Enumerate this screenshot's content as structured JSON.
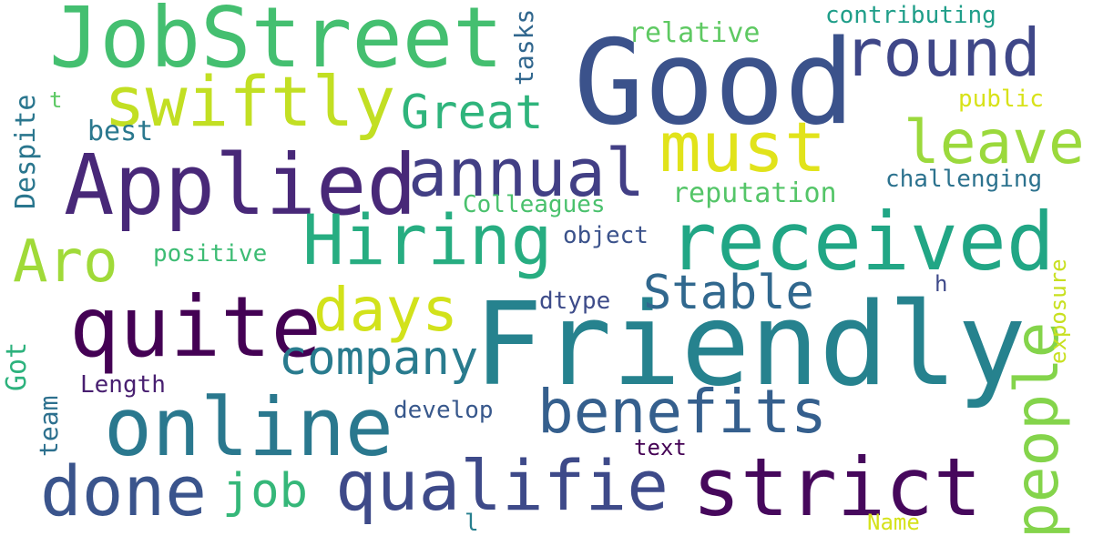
{
  "words": [
    {
      "text": "Friendly",
      "color": "#26828e"
    },
    {
      "text": "Good",
      "color": "#3b528b"
    },
    {
      "text": "JobStreet",
      "color": "#44bf70"
    },
    {
      "text": "Applied",
      "color": "#482878"
    },
    {
      "text": "quite",
      "color": "#440154"
    },
    {
      "text": "received",
      "color": "#21a685"
    },
    {
      "text": "online",
      "color": "#2a788e"
    },
    {
      "text": "strict",
      "color": "#46085c"
    },
    {
      "text": "qualifie",
      "color": "#3e4a89"
    },
    {
      "text": "Hiring",
      "color": "#27ad81"
    },
    {
      "text": "must",
      "color": "#e1e31b"
    },
    {
      "text": "swiftly",
      "color": "#c2df23"
    },
    {
      "text": "done",
      "color": "#3a548c"
    },
    {
      "text": "round",
      "color": "#3f4788"
    },
    {
      "text": "annual",
      "color": "#423f85"
    },
    {
      "text": "benefits",
      "color": "#355f8d"
    },
    {
      "text": "leave",
      "color": "#9bd93c"
    },
    {
      "text": "people",
      "color": "#84d44b"
    },
    {
      "text": "Aro",
      "color": "#a0da39"
    },
    {
      "text": "days",
      "color": "#d2e21b"
    },
    {
      "text": "Stable",
      "color": "#31688e"
    },
    {
      "text": "Great",
      "color": "#2fb47c"
    },
    {
      "text": "company",
      "color": "#297b8e"
    },
    {
      "text": "job",
      "color": "#35b779"
    },
    {
      "text": "reputation",
      "color": "#54c568"
    },
    {
      "text": "relative",
      "color": "#5ec962"
    },
    {
      "text": "contributing",
      "color": "#1f9e89"
    },
    {
      "text": "challenging",
      "color": "#2c728e"
    },
    {
      "text": "public",
      "color": "#d8e219"
    },
    {
      "text": "Colleagues",
      "color": "#4ac16d"
    },
    {
      "text": "positive",
      "color": "#3dbc74"
    },
    {
      "text": "object",
      "color": "#3b528b"
    },
    {
      "text": "dtype",
      "color": "#3e4c8a"
    },
    {
      "text": "best",
      "color": "#2a788e"
    },
    {
      "text": "Length",
      "color": "#481f70"
    },
    {
      "text": "develop",
      "color": "#38588c"
    },
    {
      "text": "text",
      "color": "#440154"
    },
    {
      "text": "Name",
      "color": "#d5e21a"
    },
    {
      "text": "h",
      "color": "#3e4989"
    },
    {
      "text": "l",
      "color": "#277f8e"
    },
    {
      "text": "t",
      "color": "#5cc863"
    },
    {
      "text": "Despite",
      "color": "#2a768e"
    },
    {
      "text": "tasks",
      "color": "#31678e"
    },
    {
      "text": "Got",
      "color": "#2db27d"
    },
    {
      "text": "team",
      "color": "#2d708e"
    },
    {
      "text": "exposure",
      "color": "#c8e020"
    }
  ]
}
